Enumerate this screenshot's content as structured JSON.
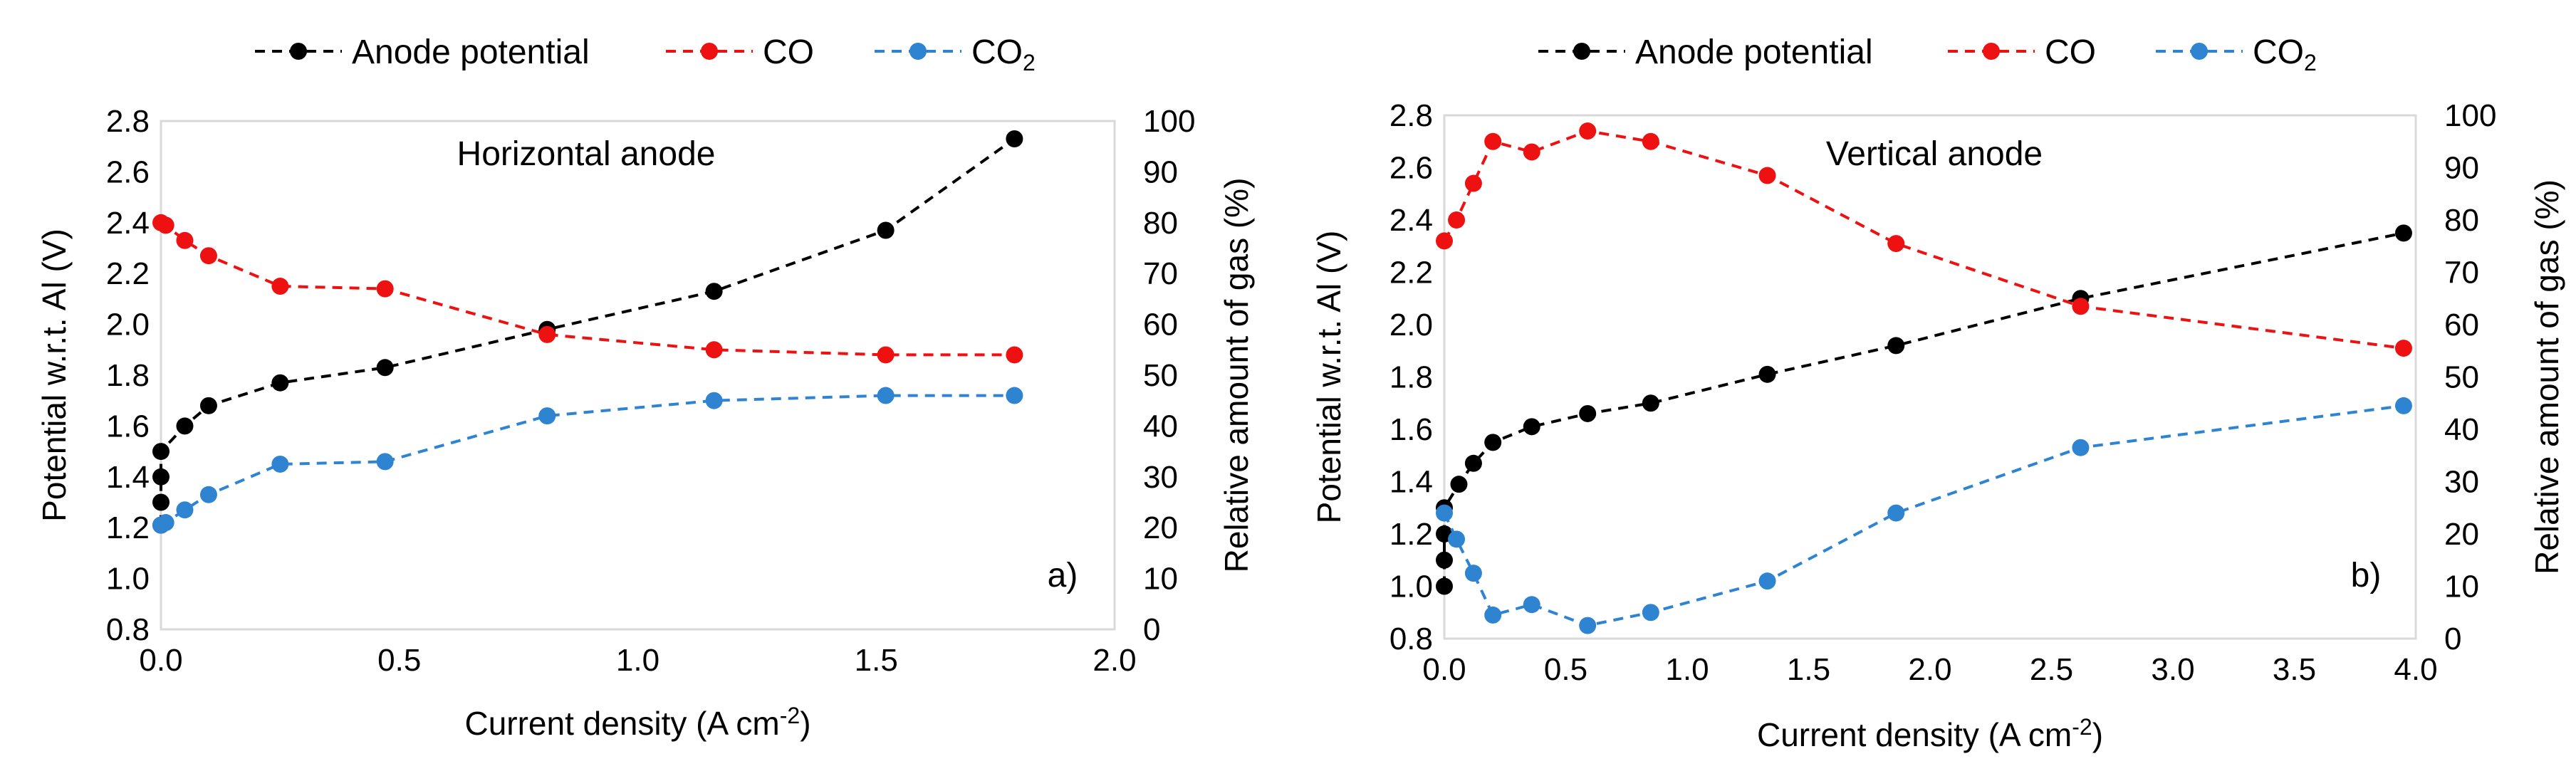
{
  "chart_data": [
    {
      "panel": "a",
      "type": "scatter",
      "title": "Horizontal anode",
      "panel_label": "a)",
      "xlabel": "Current density (A cm-2)",
      "xlabel_parts": {
        "base": "Current density (A cm",
        "sup": "-2",
        "end": ")"
      },
      "ylabel": "Potential w.r.t. Al (V)",
      "y2label": "Relative amount of gas (%)",
      "xlim": [
        0,
        2.0
      ],
      "ylim": [
        0.8,
        2.8
      ],
      "y2lim": [
        0,
        100
      ],
      "xticks": [
        "0.0",
        "0.5",
        "1.0",
        "1.5",
        "2.0"
      ],
      "yticks": [
        "0.8",
        "1.0",
        "1.2",
        "1.4",
        "1.6",
        "1.8",
        "2.0",
        "2.2",
        "2.4",
        "2.6",
        "2.8"
      ],
      "y2ticks": [
        "0",
        "10",
        "20",
        "30",
        "40",
        "50",
        "60",
        "70",
        "80",
        "90",
        "100"
      ],
      "legend_position": "top",
      "grid": false,
      "series": [
        {
          "name": "Anode potential",
          "axis": "left",
          "color": "#000000",
          "x": [
            0.0,
            0.0,
            0.0,
            0.0,
            0.05,
            0.1,
            0.25,
            0.47,
            0.81,
            1.16,
            1.52,
            1.79
          ],
          "y": [
            1.21,
            1.3,
            1.4,
            1.5,
            1.6,
            1.68,
            1.77,
            1.83,
            1.98,
            2.13,
            2.37,
            2.73
          ]
        },
        {
          "name": "CO",
          "axis": "right",
          "color": "#ee1111",
          "x": [
            0.0,
            0.01,
            0.05,
            0.1,
            0.25,
            0.47,
            0.81,
            1.16,
            1.52,
            1.79
          ],
          "y": [
            80,
            79.5,
            76.5,
            73.5,
            67.5,
            67,
            58,
            55,
            54,
            54
          ]
        },
        {
          "name": "CO2",
          "axis": "right",
          "color": "#2f84d2",
          "x": [
            0.0,
            0.01,
            0.05,
            0.1,
            0.25,
            0.47,
            0.81,
            1.16,
            1.52,
            1.79
          ],
          "y": [
            20.5,
            21,
            23.5,
            26.5,
            32.5,
            33,
            42,
            45,
            46,
            46
          ]
        }
      ]
    },
    {
      "panel": "b",
      "type": "scatter",
      "title": "Vertical anode",
      "panel_label": "b)",
      "xlabel": "Current density (A cm-2)",
      "xlabel_parts": {
        "base": "Current density (A cm",
        "sup": "-2",
        "end": ")"
      },
      "ylabel": "Potential w.r.t. Al (V)",
      "y2label": "Relative amount of gas (%)",
      "xlim": [
        0,
        4.0
      ],
      "ylim": [
        0.8,
        2.8
      ],
      "y2lim": [
        0,
        100
      ],
      "xticks": [
        "0.0",
        "0.5",
        "1.0",
        "1.5",
        "2.0",
        "2.5",
        "3.0",
        "3.5",
        "4.0"
      ],
      "yticks": [
        "0.8",
        "1.0",
        "1.2",
        "1.4",
        "1.6",
        "1.8",
        "2.0",
        "2.2",
        "2.4",
        "2.6",
        "2.8"
      ],
      "y2ticks": [
        "0",
        "10",
        "20",
        "30",
        "40",
        "50",
        "60",
        "70",
        "80",
        "90",
        "100"
      ],
      "legend_position": "top",
      "grid": false,
      "series": [
        {
          "name": "Anode potential",
          "axis": "left",
          "color": "#000000",
          "x": [
            0.0,
            0.0,
            0.0,
            0.0,
            0.06,
            0.12,
            0.2,
            0.36,
            0.59,
            0.85,
            1.33,
            1.86,
            2.62,
            3.95
          ],
          "y": [
            1.0,
            1.1,
            1.2,
            1.3,
            1.39,
            1.47,
            1.55,
            1.61,
            1.66,
            1.7,
            1.81,
            1.92,
            2.1,
            2.35
          ]
        },
        {
          "name": "CO",
          "axis": "right",
          "color": "#ee1111",
          "x": [
            0.0,
            0.05,
            0.12,
            0.2,
            0.36,
            0.59,
            0.85,
            1.33,
            1.86,
            2.62,
            3.95
          ],
          "y": [
            76,
            80,
            87,
            95,
            93,
            97,
            95,
            88.5,
            75.5,
            63.5,
            55.5
          ]
        },
        {
          "name": "CO2",
          "axis": "right",
          "color": "#2f84d2",
          "x": [
            0.0,
            0.05,
            0.12,
            0.2,
            0.36,
            0.59,
            0.85,
            1.33,
            1.86,
            2.62,
            3.95
          ],
          "y": [
            24,
            19,
            12.5,
            4.5,
            6.5,
            2.5,
            5,
            11,
            24,
            36.5,
            44.5
          ]
        }
      ]
    }
  ]
}
